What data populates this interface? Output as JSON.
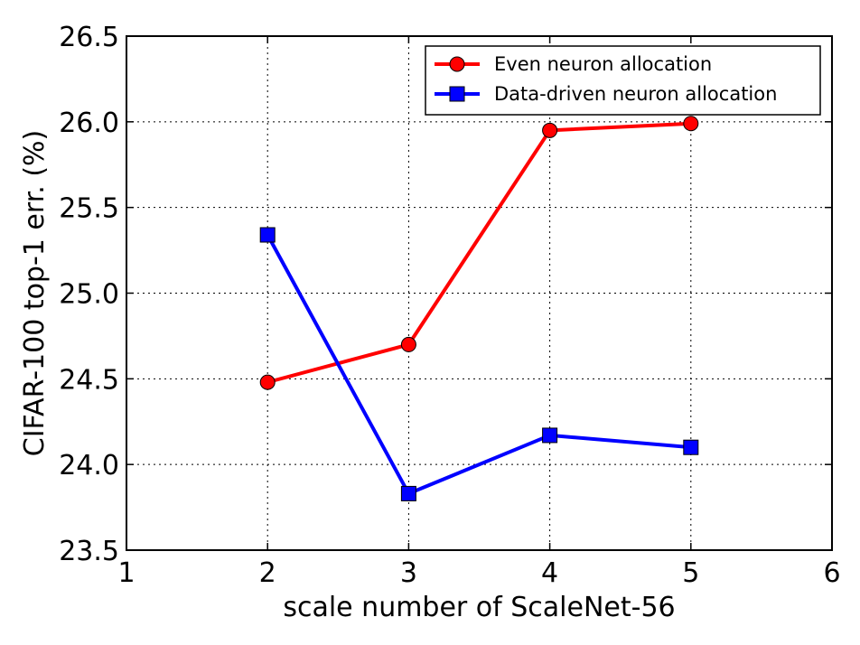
{
  "chart_data": {
    "type": "line",
    "title": "",
    "xlabel": "scale number of ScaleNet-56",
    "ylabel": "CIFAR-100 top-1 err. (%)",
    "xlim": [
      1,
      6
    ],
    "ylim": [
      23.5,
      26.5
    ],
    "xticks": [
      1,
      2,
      3,
      4,
      5,
      6
    ],
    "yticks": [
      23.5,
      24.0,
      24.5,
      25.0,
      25.5,
      26.0,
      26.5
    ],
    "xtick_labels": [
      "1",
      "2",
      "3",
      "4",
      "5",
      "6"
    ],
    "ytick_labels": [
      "23.5",
      "24.0",
      "24.5",
      "25.0",
      "25.5",
      "26.0",
      "26.5"
    ],
    "grid": true,
    "legend_position": "top-right",
    "series": [
      {
        "name": "Even neuron allocation",
        "color": "#ff0000",
        "marker": "circle",
        "x": [
          2,
          3,
          4,
          5
        ],
        "y": [
          24.48,
          24.7,
          25.95,
          25.99
        ]
      },
      {
        "name": "Data-driven neuron allocation",
        "color": "#0000ff",
        "marker": "square",
        "x": [
          2,
          3,
          4,
          5
        ],
        "y": [
          25.34,
          23.83,
          24.17,
          24.1
        ]
      }
    ]
  }
}
